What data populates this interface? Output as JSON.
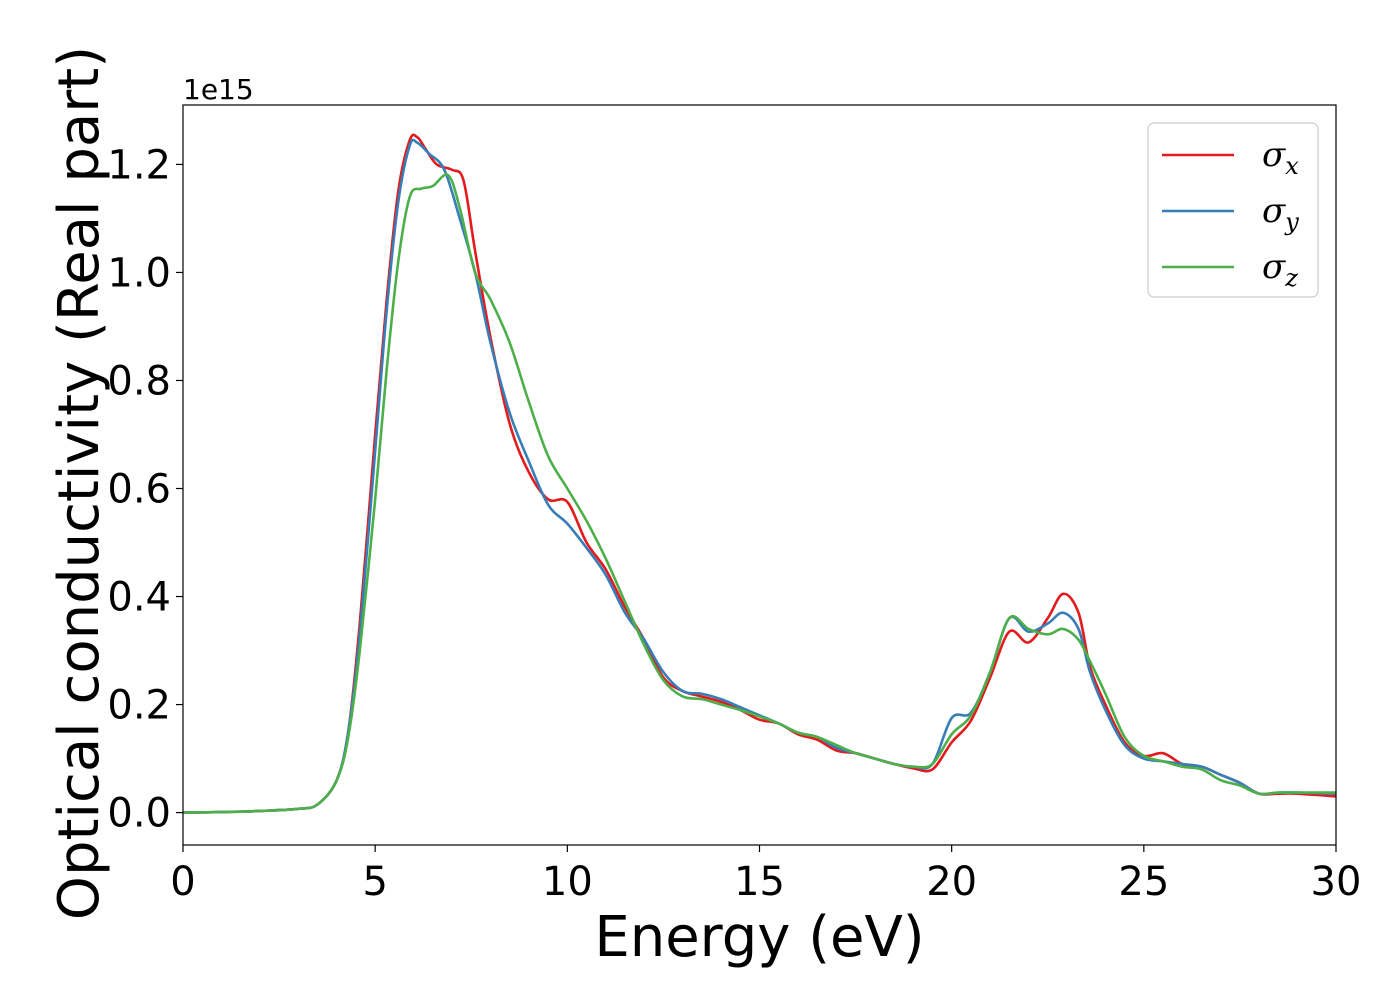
{
  "chart_data": {
    "type": "line",
    "xlabel": "Energy (eV)",
    "ylabel": "Optical conductivity (Real part)",
    "offset_text": "1e15",
    "xlim": [
      0,
      30
    ],
    "ylim": [
      -0.06,
      1.31
    ],
    "y_scale_factor": "1e15",
    "xticks": [
      0,
      5,
      10,
      15,
      20,
      25,
      30
    ],
    "yticks": [
      0.0,
      0.2,
      0.4,
      0.6,
      0.8,
      1.0,
      1.2
    ],
    "xtick_labels": [
      "0",
      "5",
      "10",
      "15",
      "20",
      "25",
      "30"
    ],
    "ytick_labels": [
      "0.0",
      "0.2",
      "0.4",
      "0.6",
      "0.8",
      "1.0",
      "1.2"
    ],
    "grid": false,
    "legend_position": "top-right",
    "series": [
      {
        "name": "σx",
        "legend_symbol": "σ",
        "legend_subscript": "x",
        "color": "#e41a1c",
        "points": [
          [
            0,
            0
          ],
          [
            1,
            0.001
          ],
          [
            2,
            0.003
          ],
          [
            3,
            0.007
          ],
          [
            3.5,
            0.015
          ],
          [
            4,
            0.06
          ],
          [
            4.3,
            0.15
          ],
          [
            4.6,
            0.35
          ],
          [
            5,
            0.7
          ],
          [
            5.3,
            0.95
          ],
          [
            5.6,
            1.15
          ],
          [
            5.9,
            1.245
          ],
          [
            6.1,
            1.25
          ],
          [
            6.3,
            1.23
          ],
          [
            6.6,
            1.2
          ],
          [
            7,
            1.19
          ],
          [
            7.3,
            1.17
          ],
          [
            7.6,
            1.04
          ],
          [
            8,
            0.88
          ],
          [
            8.5,
            0.72
          ],
          [
            9,
            0.63
          ],
          [
            9.5,
            0.58
          ],
          [
            10,
            0.575
          ],
          [
            10.5,
            0.5
          ],
          [
            11,
            0.45
          ],
          [
            11.5,
            0.38
          ],
          [
            12,
            0.32
          ],
          [
            12.5,
            0.25
          ],
          [
            13,
            0.225
          ],
          [
            13.5,
            0.215
          ],
          [
            14,
            0.205
          ],
          [
            14.5,
            0.19
          ],
          [
            15,
            0.172
          ],
          [
            15.5,
            0.165
          ],
          [
            16,
            0.145
          ],
          [
            16.5,
            0.135
          ],
          [
            17,
            0.115
          ],
          [
            17.5,
            0.11
          ],
          [
            18,
            0.1
          ],
          [
            18.5,
            0.09
          ],
          [
            19,
            0.082
          ],
          [
            19.5,
            0.08
          ],
          [
            20,
            0.13
          ],
          [
            20.5,
            0.17
          ],
          [
            21,
            0.25
          ],
          [
            21.5,
            0.335
          ],
          [
            22,
            0.315
          ],
          [
            22.5,
            0.36
          ],
          [
            22.9,
            0.405
          ],
          [
            23.3,
            0.37
          ],
          [
            23.6,
            0.27
          ],
          [
            24,
            0.2
          ],
          [
            24.5,
            0.13
          ],
          [
            25,
            0.105
          ],
          [
            25.5,
            0.11
          ],
          [
            26,
            0.09
          ],
          [
            26.5,
            0.085
          ],
          [
            27,
            0.07
          ],
          [
            27.5,
            0.055
          ],
          [
            28,
            0.035
          ],
          [
            28.5,
            0.035
          ],
          [
            29,
            0.035
          ],
          [
            30,
            0.03
          ]
        ]
      },
      {
        "name": "σy",
        "legend_symbol": "σ",
        "legend_subscript": "y",
        "color": "#377eb8",
        "points": [
          [
            0,
            0
          ],
          [
            1,
            0.001
          ],
          [
            2,
            0.003
          ],
          [
            3,
            0.007
          ],
          [
            3.5,
            0.015
          ],
          [
            4,
            0.06
          ],
          [
            4.3,
            0.15
          ],
          [
            4.6,
            0.33
          ],
          [
            5,
            0.67
          ],
          [
            5.3,
            0.93
          ],
          [
            5.6,
            1.13
          ],
          [
            5.9,
            1.235
          ],
          [
            6.1,
            1.24
          ],
          [
            6.4,
            1.22
          ],
          [
            6.8,
            1.19
          ],
          [
            7.2,
            1.1
          ],
          [
            7.6,
            1.0
          ],
          [
            8,
            0.87
          ],
          [
            8.5,
            0.74
          ],
          [
            9,
            0.65
          ],
          [
            9.5,
            0.57
          ],
          [
            10,
            0.535
          ],
          [
            10.5,
            0.49
          ],
          [
            11,
            0.44
          ],
          [
            11.5,
            0.37
          ],
          [
            12,
            0.32
          ],
          [
            12.5,
            0.26
          ],
          [
            13,
            0.225
          ],
          [
            13.5,
            0.22
          ],
          [
            14,
            0.21
          ],
          [
            14.5,
            0.195
          ],
          [
            15,
            0.18
          ],
          [
            15.5,
            0.165
          ],
          [
            16,
            0.148
          ],
          [
            16.5,
            0.14
          ],
          [
            17,
            0.12
          ],
          [
            17.5,
            0.11
          ],
          [
            18,
            0.1
          ],
          [
            18.5,
            0.09
          ],
          [
            19,
            0.085
          ],
          [
            19.5,
            0.09
          ],
          [
            20,
            0.175
          ],
          [
            20.5,
            0.185
          ],
          [
            21,
            0.26
          ],
          [
            21.5,
            0.36
          ],
          [
            22,
            0.335
          ],
          [
            22.5,
            0.35
          ],
          [
            22.9,
            0.37
          ],
          [
            23.3,
            0.34
          ],
          [
            23.6,
            0.26
          ],
          [
            24,
            0.19
          ],
          [
            24.5,
            0.125
          ],
          [
            25,
            0.1
          ],
          [
            25.5,
            0.095
          ],
          [
            26,
            0.09
          ],
          [
            26.5,
            0.085
          ],
          [
            27,
            0.07
          ],
          [
            27.5,
            0.055
          ],
          [
            28,
            0.035
          ],
          [
            28.5,
            0.037
          ],
          [
            29,
            0.037
          ],
          [
            30,
            0.035
          ]
        ]
      },
      {
        "name": "σz",
        "legend_symbol": "σ",
        "legend_subscript": "z",
        "color": "#4daf4a",
        "points": [
          [
            0,
            0
          ],
          [
            1,
            0.001
          ],
          [
            2,
            0.003
          ],
          [
            3,
            0.007
          ],
          [
            3.5,
            0.015
          ],
          [
            4,
            0.06
          ],
          [
            4.3,
            0.14
          ],
          [
            4.6,
            0.3
          ],
          [
            5,
            0.58
          ],
          [
            5.3,
            0.82
          ],
          [
            5.6,
            1.02
          ],
          [
            5.9,
            1.14
          ],
          [
            6.2,
            1.155
          ],
          [
            6.5,
            1.16
          ],
          [
            6.9,
            1.18
          ],
          [
            7.2,
            1.12
          ],
          [
            7.6,
            1.0
          ],
          [
            8,
            0.95
          ],
          [
            8.5,
            0.87
          ],
          [
            9,
            0.76
          ],
          [
            9.5,
            0.66
          ],
          [
            10,
            0.6
          ],
          [
            10.5,
            0.54
          ],
          [
            11,
            0.47
          ],
          [
            11.5,
            0.39
          ],
          [
            12,
            0.31
          ],
          [
            12.5,
            0.245
          ],
          [
            13,
            0.215
          ],
          [
            13.5,
            0.21
          ],
          [
            14,
            0.2
          ],
          [
            14.5,
            0.19
          ],
          [
            15,
            0.178
          ],
          [
            15.5,
            0.165
          ],
          [
            16,
            0.148
          ],
          [
            16.5,
            0.14
          ],
          [
            17,
            0.125
          ],
          [
            17.5,
            0.11
          ],
          [
            18,
            0.1
          ],
          [
            18.5,
            0.09
          ],
          [
            19,
            0.085
          ],
          [
            19.5,
            0.09
          ],
          [
            20,
            0.145
          ],
          [
            20.5,
            0.18
          ],
          [
            21,
            0.26
          ],
          [
            21.5,
            0.36
          ],
          [
            22,
            0.34
          ],
          [
            22.5,
            0.33
          ],
          [
            22.9,
            0.34
          ],
          [
            23.3,
            0.32
          ],
          [
            23.6,
            0.28
          ],
          [
            24,
            0.22
          ],
          [
            24.5,
            0.14
          ],
          [
            25,
            0.105
          ],
          [
            25.5,
            0.095
          ],
          [
            26,
            0.085
          ],
          [
            26.5,
            0.08
          ],
          [
            27,
            0.06
          ],
          [
            27.5,
            0.05
          ],
          [
            28,
            0.035
          ],
          [
            28.5,
            0.037
          ],
          [
            29,
            0.037
          ],
          [
            30,
            0.037
          ]
        ]
      }
    ]
  }
}
